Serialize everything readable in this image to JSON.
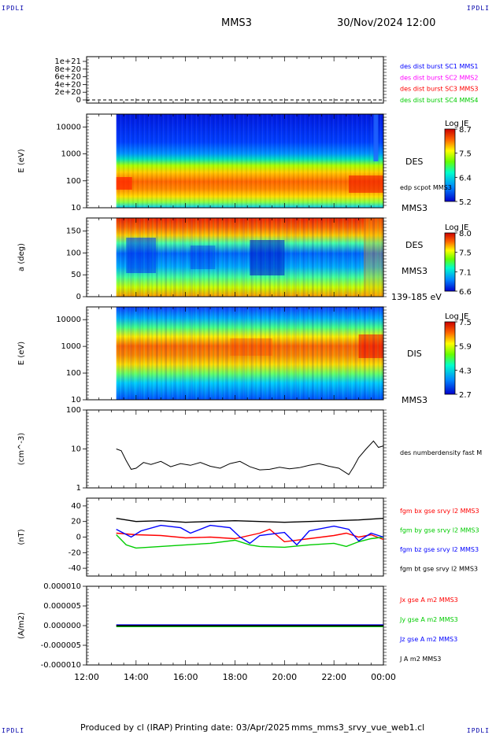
{
  "page": {
    "corner_label": "IPDLI",
    "spacecraft": "MMS3",
    "datetime": "30/Nov/2024 12:00",
    "footer_producer": "Produced by cl (IRAP)",
    "footer_printing": "Printing date: 03/Apr/2025",
    "footer_file": "mms_mms3_srvy_vue_web1.cl"
  },
  "colors": {
    "blue": "#0000ff",
    "magenta": "#ff00ff",
    "red": "#ff0000",
    "green": "#00cc00",
    "black": "#000000"
  },
  "chart_data": [
    {
      "type": "line",
      "panel": "dist-burst",
      "ylabel": "",
      "yticks": [
        "1e+21",
        "8e+20",
        "6e+20",
        "4e+20",
        "2e+20",
        "0"
      ],
      "legend": [
        {
          "label": "des dist burst SC1 MMS1",
          "color": "#0000ff"
        },
        {
          "label": "des dist burst SC2 MMS2",
          "color": "#ff00ff"
        },
        {
          "label": "des dist burst SC3 MMS3",
          "color": "#ff0000"
        },
        {
          "label": "des dist burst SC4 MMS4",
          "color": "#00cc00"
        }
      ]
    },
    {
      "type": "heatmap",
      "panel": "des-energy",
      "ylabel": "E (eV)",
      "yticks": [
        "10000",
        "1000",
        "100",
        "10"
      ],
      "label1": "DES",
      "label2": "edp scpot MMS3",
      "label3": "MMS3",
      "colorbar_title": "Log JE",
      "colorbar_ticks": [
        "8.7",
        "7.5",
        "6.4",
        "5.2"
      ]
    },
    {
      "type": "heatmap",
      "panel": "des-pitch",
      "ylabel": "a (deg)",
      "yticks": [
        "150",
        "100",
        "50",
        "0"
      ],
      "label1": "DES",
      "label2": "MMS3",
      "label3": "139-185 eV",
      "colorbar_title": "Log JE",
      "colorbar_ticks": [
        "8.0",
        "7.5",
        "7.1",
        "6.6"
      ]
    },
    {
      "type": "heatmap",
      "panel": "dis-energy",
      "ylabel": "E (eV)",
      "yticks": [
        "10000",
        "1000",
        "100",
        "10"
      ],
      "label1": "DIS",
      "label2": "MMS3",
      "colorbar_title": "Log JE",
      "colorbar_ticks": [
        "7.5",
        "5.9",
        "4.3",
        "2.7"
      ]
    },
    {
      "type": "line",
      "panel": "density",
      "ylabel": "(cm^-3)",
      "yticks": [
        "100",
        "10",
        "1"
      ],
      "ylim": [
        1,
        100
      ],
      "yscale": "log",
      "legend": [
        {
          "label": "des numberdensity fast M",
          "color": "#000000"
        }
      ],
      "x_hours": [
        13.2,
        13.4,
        13.6,
        13.8,
        14.0,
        14.3,
        14.6,
        15.0,
        15.4,
        15.8,
        16.2,
        16.6,
        17.0,
        17.4,
        17.8,
        18.2,
        18.6,
        19.0,
        19.4,
        19.8,
        20.2,
        20.6,
        21.0,
        21.4,
        21.8,
        22.2,
        22.6,
        22.8,
        23.0,
        23.3,
        23.6,
        23.8,
        24.0
      ],
      "values": [
        10,
        9,
        5,
        3,
        3.2,
        4.5,
        4,
        4.8,
        3.5,
        4.2,
        3.8,
        4.5,
        3.6,
        3.2,
        4.2,
        4.8,
        3.5,
        2.9,
        3.0,
        3.4,
        3.1,
        3.3,
        3.8,
        4.2,
        3.6,
        3.2,
        2.2,
        3.5,
        6,
        10,
        16,
        11,
        12
      ]
    },
    {
      "type": "line",
      "panel": "fgm",
      "ylabel": "(nT)",
      "yticks": [
        "40",
        "20",
        "0",
        "-20",
        "-40"
      ],
      "ylim": [
        -50,
        50
      ],
      "series": [
        {
          "name": "fgm bx gse srvy l2 MMS3",
          "color": "#ff0000",
          "x_hours": [
            13.2,
            14.0,
            15.0,
            16.0,
            17.0,
            18.0,
            19.0,
            19.4,
            20.0,
            21.0,
            22.0,
            22.5,
            23.0,
            23.5,
            24.0
          ],
          "values": [
            5,
            3,
            2,
            -1,
            0,
            -2,
            5,
            10,
            -6,
            -2,
            2,
            5,
            0,
            3,
            -3
          ]
        },
        {
          "name": "fgm by gse srvy l2 MMS3",
          "color": "#00cc00",
          "x_hours": [
            13.2,
            13.6,
            14.0,
            15.0,
            16.0,
            17.0,
            18.0,
            18.6,
            19.0,
            20.0,
            21.0,
            22.0,
            22.5,
            23.0,
            23.5,
            24.0
          ],
          "values": [
            3,
            -10,
            -14,
            -12,
            -10,
            -8,
            -4,
            -10,
            -12,
            -13,
            -10,
            -8,
            -12,
            -6,
            -2,
            0
          ]
        },
        {
          "name": "fgm bz gse srvy l2 MMS3",
          "color": "#0000ff",
          "x_hours": [
            13.2,
            13.8,
            14.2,
            15.0,
            15.8,
            16.2,
            17.0,
            17.8,
            18.2,
            18.6,
            19.0,
            20.0,
            20.5,
            21.0,
            22.0,
            22.6,
            23.0,
            23.5,
            24.0
          ],
          "values": [
            10,
            0,
            8,
            15,
            12,
            5,
            15,
            12,
            0,
            -8,
            2,
            6,
            -10,
            8,
            14,
            10,
            -5,
            5,
            0
          ]
        },
        {
          "name": "fgm bt gse srvy l2 MMS3",
          "color": "#000000",
          "x_hours": [
            13.2,
            14.0,
            15.0,
            16.0,
            17.0,
            18.0,
            19.0,
            20.0,
            21.0,
            22.0,
            23.0,
            24.0
          ],
          "values": [
            24,
            20,
            21,
            19,
            20,
            21,
            20,
            19,
            20,
            21,
            22,
            24
          ]
        }
      ]
    },
    {
      "type": "line",
      "panel": "current",
      "ylabel": "(A/m2)",
      "yticks": [
        "0.000010",
        "0.000005",
        "0.000000",
        "-0.000005",
        "-0.000010"
      ],
      "ylim": [
        -1e-05,
        1e-05
      ],
      "series": [
        {
          "name": "Jx gse A m2 MMS3",
          "color": "#ff0000"
        },
        {
          "name": "Jy gse A m2 MMS3",
          "color": "#00cc00"
        },
        {
          "name": "Jz gse A m2 MMS3",
          "color": "#0000ff"
        },
        {
          "name": "J A m2 MMS3",
          "color": "#000000"
        }
      ]
    }
  ],
  "xaxis": {
    "ticks": [
      "12:00",
      "14:00",
      "16:00",
      "18:00",
      "20:00",
      "22:00",
      "00:00"
    ]
  }
}
